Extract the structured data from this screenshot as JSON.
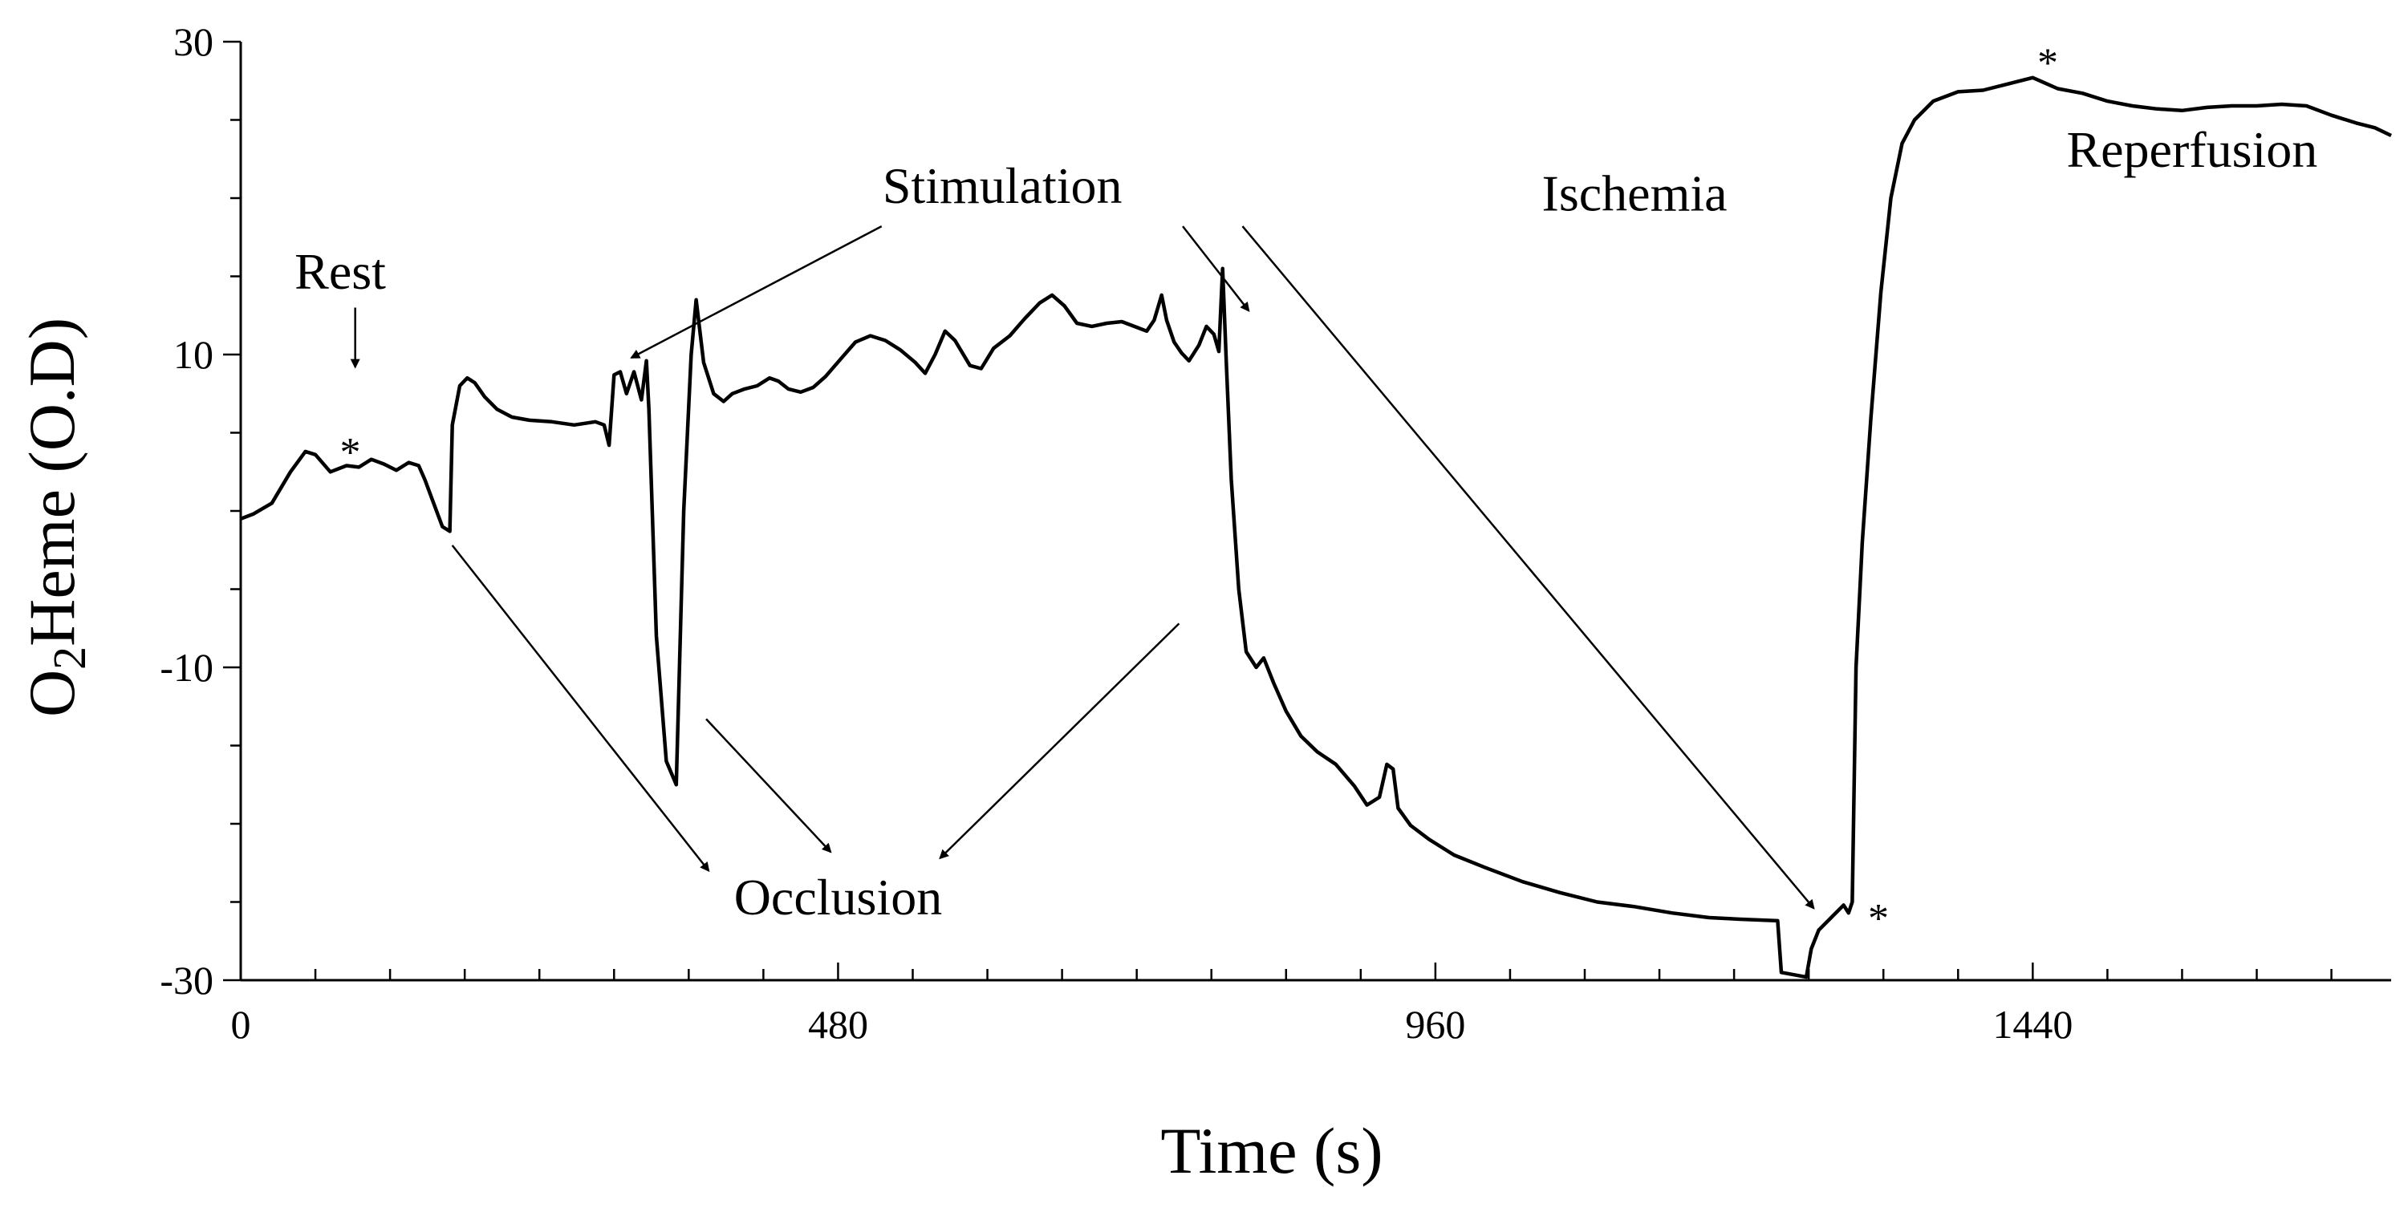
{
  "chart_data": {
    "type": "line",
    "title": "",
    "xlabel": "Time (s)",
    "ylabel_parts": {
      "base1": "O",
      "sub": "2",
      "base2": "Heme (O.D)"
    },
    "xlim": [
      0,
      1728
    ],
    "ylim": [
      -30,
      30
    ],
    "xticks": [
      0,
      480,
      960,
      1440
    ],
    "xtick_labels": [
      "0",
      "480",
      "960",
      "1440"
    ],
    "yticks": [
      -30,
      -10,
      10,
      30
    ],
    "ytick_labels": [
      "-30",
      "-10",
      "10",
      "30"
    ],
    "x_minor_step": 60,
    "y_minor_step": 5,
    "series": [
      {
        "name": "O2Heme",
        "points": [
          [
            0,
            -0.5
          ],
          [
            10,
            -0.2
          ],
          [
            25,
            0.5
          ],
          [
            40,
            2.5
          ],
          [
            52,
            3.8
          ],
          [
            60,
            3.6
          ],
          [
            72,
            2.5
          ],
          [
            85,
            2.9
          ],
          [
            95,
            2.8
          ],
          [
            105,
            3.3
          ],
          [
            115,
            3.0
          ],
          [
            125,
            2.6
          ],
          [
            135,
            3.1
          ],
          [
            143,
            2.9
          ],
          [
            148,
            2.0
          ],
          [
            155,
            0.5
          ],
          [
            162,
            -1.0
          ],
          [
            168,
            -1.3
          ],
          [
            170,
            5.5
          ],
          [
            176,
            8.0
          ],
          [
            182,
            8.5
          ],
          [
            188,
            8.2
          ],
          [
            196,
            7.3
          ],
          [
            206,
            6.5
          ],
          [
            218,
            6.0
          ],
          [
            232,
            5.8
          ],
          [
            250,
            5.7
          ],
          [
            268,
            5.5
          ],
          [
            285,
            5.7
          ],
          [
            292,
            5.5
          ],
          [
            296,
            4.2
          ],
          [
            300,
            8.7
          ],
          [
            305,
            8.9
          ],
          [
            310,
            7.5
          ],
          [
            316,
            8.9
          ],
          [
            322,
            7.1
          ],
          [
            326,
            9.6
          ],
          [
            328,
            6.5
          ],
          [
            334,
            -8.0
          ],
          [
            342,
            -16.0
          ],
          [
            350,
            -17.5
          ],
          [
            356,
            0.0
          ],
          [
            362,
            10.0
          ],
          [
            366,
            13.5
          ],
          [
            372,
            9.5
          ],
          [
            380,
            7.5
          ],
          [
            388,
            7.0
          ],
          [
            395,
            7.5
          ],
          [
            405,
            7.8
          ],
          [
            415,
            8.0
          ],
          [
            425,
            8.5
          ],
          [
            432,
            8.3
          ],
          [
            440,
            7.8
          ],
          [
            450,
            7.6
          ],
          [
            460,
            7.9
          ],
          [
            470,
            8.6
          ],
          [
            482,
            9.7
          ],
          [
            494,
            10.8
          ],
          [
            506,
            11.2
          ],
          [
            518,
            10.9
          ],
          [
            530,
            10.3
          ],
          [
            542,
            9.5
          ],
          [
            550,
            8.8
          ],
          [
            558,
            10.0
          ],
          [
            566,
            11.5
          ],
          [
            574,
            10.9
          ],
          [
            586,
            9.3
          ],
          [
            595,
            9.1
          ],
          [
            605,
            10.4
          ],
          [
            618,
            11.2
          ],
          [
            630,
            12.3
          ],
          [
            642,
            13.3
          ],
          [
            652,
            13.8
          ],
          [
            662,
            13.1
          ],
          [
            672,
            12.0
          ],
          [
            684,
            11.8
          ],
          [
            696,
            12.0
          ],
          [
            708,
            12.1
          ],
          [
            718,
            11.8
          ],
          [
            728,
            11.5
          ],
          [
            734,
            12.2
          ],
          [
            740,
            13.8
          ],
          [
            744,
            12.2
          ],
          [
            750,
            10.8
          ],
          [
            756,
            10.1
          ],
          [
            762,
            9.6
          ],
          [
            770,
            10.6
          ],
          [
            776,
            11.8
          ],
          [
            782,
            11.3
          ],
          [
            786,
            10.2
          ],
          [
            789,
            15.5
          ],
          [
            792,
            9.5
          ],
          [
            796,
            2.0
          ],
          [
            802,
            -5.0
          ],
          [
            808,
            -9.0
          ],
          [
            816,
            -10.0
          ],
          [
            822,
            -9.4
          ],
          [
            830,
            -11.0
          ],
          [
            840,
            -12.8
          ],
          [
            852,
            -14.4
          ],
          [
            865,
            -15.4
          ],
          [
            880,
            -16.2
          ],
          [
            895,
            -17.6
          ],
          [
            905,
            -18.8
          ],
          [
            915,
            -18.3
          ],
          [
            921,
            -16.2
          ],
          [
            926,
            -16.5
          ],
          [
            930,
            -19.0
          ],
          [
            940,
            -20.1
          ],
          [
            955,
            -21.0
          ],
          [
            975,
            -22.0
          ],
          [
            1000,
            -22.8
          ],
          [
            1030,
            -23.7
          ],
          [
            1060,
            -24.4
          ],
          [
            1090,
            -25.0
          ],
          [
            1120,
            -25.3
          ],
          [
            1150,
            -25.7
          ],
          [
            1180,
            -26.0
          ],
          [
            1205,
            -26.1
          ],
          [
            1235,
            -26.2
          ],
          [
            1238,
            -29.5
          ],
          [
            1258,
            -29.8
          ],
          [
            1262,
            -28.0
          ],
          [
            1268,
            -26.8
          ],
          [
            1278,
            -26.0
          ],
          [
            1288,
            -25.2
          ],
          [
            1292,
            -25.7
          ],
          [
            1295,
            -25.0
          ],
          [
            1298,
            -10.0
          ],
          [
            1303,
            -2.0
          ],
          [
            1310,
            6.0
          ],
          [
            1318,
            14.0
          ],
          [
            1326,
            20.0
          ],
          [
            1335,
            23.5
          ],
          [
            1345,
            25.0
          ],
          [
            1360,
            26.2
          ],
          [
            1380,
            26.8
          ],
          [
            1400,
            26.9
          ],
          [
            1420,
            27.3
          ],
          [
            1440,
            27.7
          ],
          [
            1460,
            27.0
          ],
          [
            1480,
            26.7
          ],
          [
            1500,
            26.2
          ],
          [
            1520,
            25.9
          ],
          [
            1540,
            25.7
          ],
          [
            1560,
            25.6
          ],
          [
            1580,
            25.8
          ],
          [
            1600,
            25.9
          ],
          [
            1620,
            25.9
          ],
          [
            1640,
            26.0
          ],
          [
            1660,
            25.9
          ],
          [
            1680,
            25.3
          ],
          [
            1700,
            24.8
          ],
          [
            1715,
            24.5
          ],
          [
            1728,
            24.0
          ]
        ]
      }
    ],
    "annotations": [
      {
        "id": "rest",
        "text": "Rest",
        "x": 80,
        "y": 14.2,
        "anchor": "middle"
      },
      {
        "id": "stimulation",
        "text": "Stimulation",
        "x": 612,
        "y": 19.7,
        "anchor": "middle"
      },
      {
        "id": "ischemia",
        "text": "Ischemia",
        "x": 1120,
        "y": 19.2,
        "anchor": "middle"
      },
      {
        "id": "reperfusion",
        "text": "Reperfusion",
        "x": 1568,
        "y": 22.0,
        "anchor": "middle"
      },
      {
        "id": "occlusion",
        "text": "Occlusion",
        "x": 480,
        "y": -25.8,
        "anchor": "middle"
      }
    ],
    "markers": [
      {
        "id": "star-rest",
        "text": "*",
        "x": 88,
        "y": 3.8
      },
      {
        "id": "star-ischemia-end",
        "text": "*",
        "x": 1316,
        "y": -26.0
      },
      {
        "id": "star-reperfusion-peak",
        "text": "*",
        "x": 1452,
        "y": 28.7
      }
    ],
    "arrows": [
      {
        "id": "rest-arrow",
        "from": [
          92,
          13.0
        ],
        "to": [
          92,
          9.2
        ]
      },
      {
        "id": "stim-arrow-1",
        "from": [
          515,
          18.2
        ],
        "to": [
          314,
          9.8
        ]
      },
      {
        "id": "stim-arrow-2",
        "from": [
          757,
          18.2
        ],
        "to": [
          810,
          12.8
        ]
      },
      {
        "id": "stim-arrow-3",
        "from": [
          805,
          18.2
        ],
        "to": [
          1264,
          -25.4
        ]
      },
      {
        "id": "occlusion-arrow-1",
        "from": [
          170,
          -2.2
        ],
        "to": [
          376,
          -23.0
        ]
      },
      {
        "id": "occlusion-arrow-2",
        "from": [
          374,
          -13.3
        ],
        "to": [
          474,
          -21.8
        ]
      },
      {
        "id": "occlusion-arrow-3",
        "from": [
          754,
          -7.2
        ],
        "to": [
          562,
          -22.2
        ]
      }
    ]
  }
}
